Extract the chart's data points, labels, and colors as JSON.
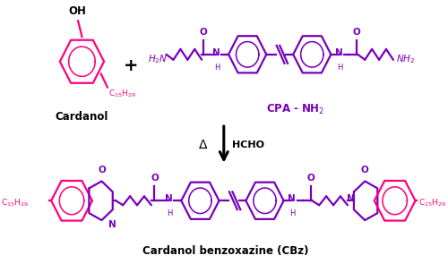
{
  "background": "#ffffff",
  "magenta": "#FF007F",
  "purple": "#7700BB",
  "black": "#000000",
  "fig_width": 5.0,
  "fig_height": 2.95,
  "dpi": 100,
  "cardanol_label": "Cardanol",
  "cpa_label": "CPA - NH$_2$",
  "product_label": "Cardanol benzoxazine (CBz)",
  "c15h29": "C$_{15}$H$_{29}$",
  "xlim": [
    0,
    500
  ],
  "ylim": [
    0,
    295
  ]
}
